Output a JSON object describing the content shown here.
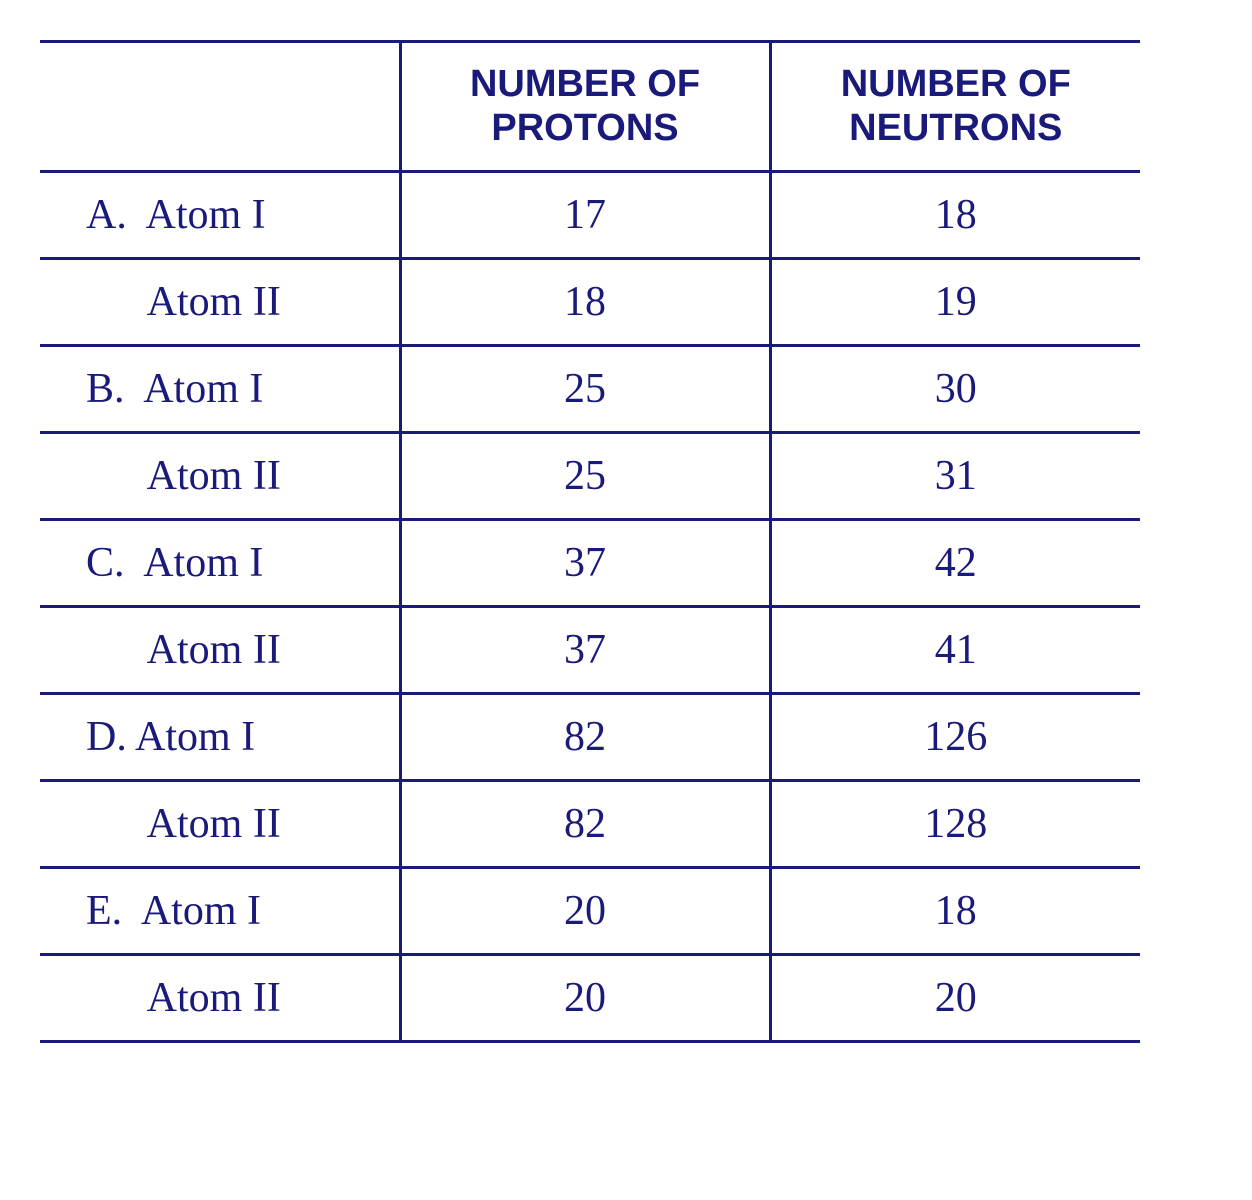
{
  "table": {
    "headers": [
      "",
      "NUMBER OF\nPROTONS",
      "NUMBER OF\nNEUTRONS"
    ],
    "rows": [
      {
        "label": "A.  Atom I",
        "protons": "17",
        "neutrons": "18"
      },
      {
        "label": "      Atom II",
        "protons": "18",
        "neutrons": "19"
      },
      {
        "label": "B.  Atom I",
        "protons": "25",
        "neutrons": "30"
      },
      {
        "label": "      Atom II",
        "protons": "25",
        "neutrons": "31"
      },
      {
        "label": "C.  Atom I",
        "protons": "37",
        "neutrons": "42"
      },
      {
        "label": "      Atom II",
        "protons": "37",
        "neutrons": "41"
      },
      {
        "label": "D. Atom I",
        "protons": "82",
        "neutrons": "126"
      },
      {
        "label": "      Atom II",
        "protons": "82",
        "neutrons": "128"
      },
      {
        "label": "E.  Atom I",
        "protons": "20",
        "neutrons": "18"
      },
      {
        "label": "      Atom II",
        "protons": "20",
        "neutrons": "20"
      }
    ],
    "colors": {
      "border": "#1a1a7a",
      "text": "#1a1a7a",
      "background": "#ffffff"
    },
    "fontsize_header": 38,
    "fontsize_body": 42,
    "border_width": 3
  }
}
